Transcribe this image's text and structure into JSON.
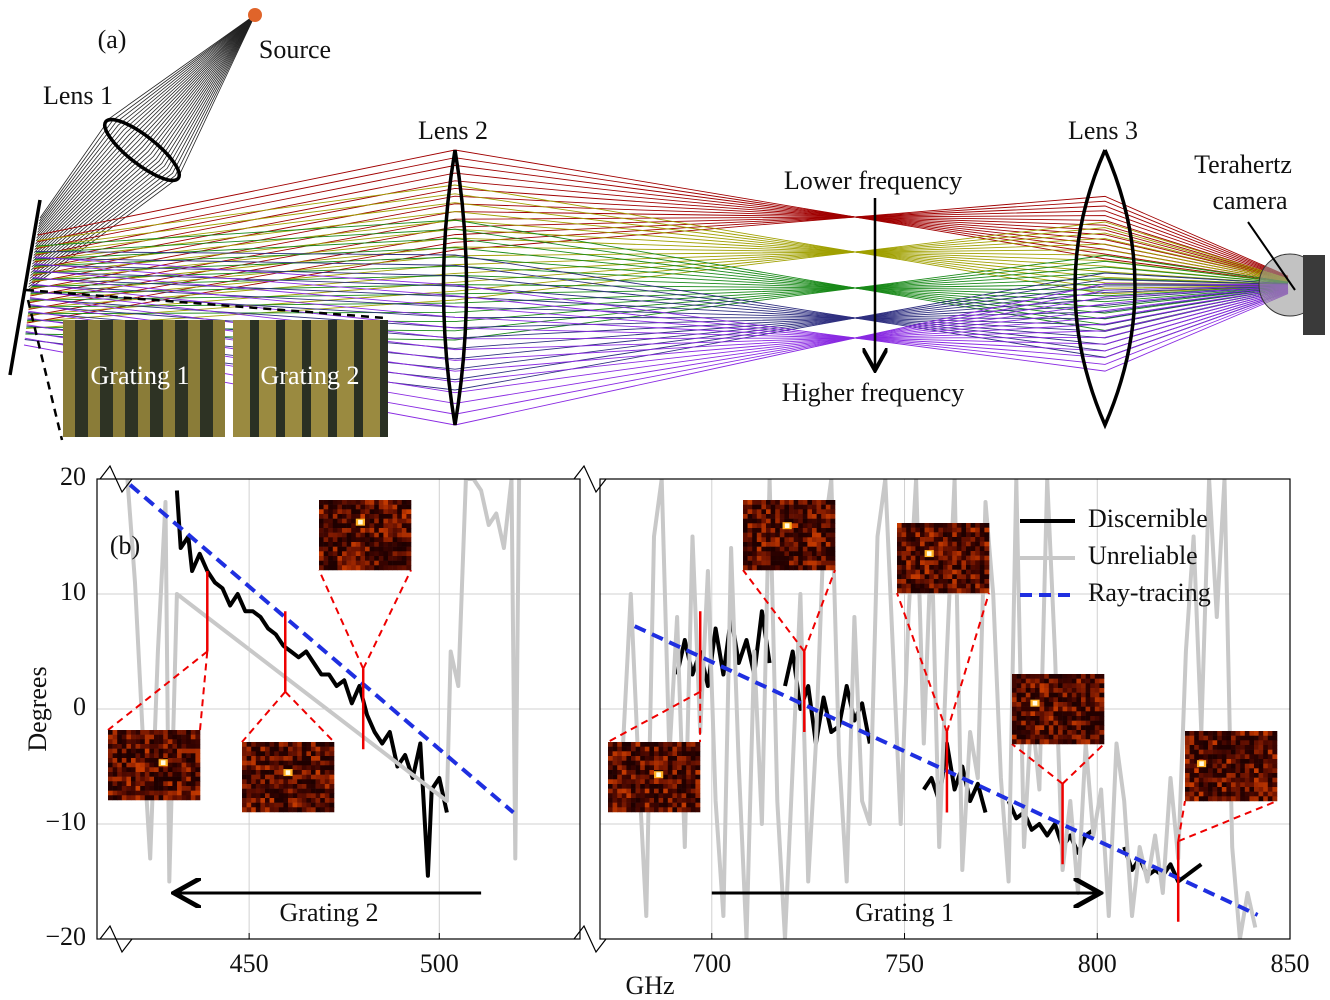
{
  "diagram": {
    "panel_label": "(a)",
    "source": "Source",
    "lenses": [
      "Lens 1",
      "Lens 2",
      "Lens 3"
    ],
    "camera": [
      "Terahertz",
      "camera"
    ],
    "lower_frequency": "Lower frequency",
    "higher_frequency": "Higher frequency",
    "gratings": [
      "Grating 1",
      "Grating 2"
    ]
  },
  "chart_data": {
    "type": "line",
    "panel_label": "(b)",
    "ylabel": "Degrees",
    "xlabel": "GHz",
    "panels": [
      {
        "xlim": [
          410,
          537
        ],
        "xticks": [
          450,
          500
        ]
      },
      {
        "xlim": [
          671,
          850
        ],
        "xticks": [
          700,
          750,
          800,
          850
        ]
      }
    ],
    "ylim": [
      -20,
      20
    ],
    "yticks": [
      {
        "value": -20,
        "label": "−20"
      },
      {
        "value": -10,
        "label": "−10"
      },
      0,
      10,
      20
    ],
    "grid": true,
    "legend": "upper right",
    "series": [
      {
        "name": "Discernible",
        "color": "#000000",
        "x": [
          431,
          432,
          434,
          435,
          437,
          439,
          441,
          443,
          445,
          447,
          449,
          451,
          453,
          455,
          457,
          459,
          461,
          463,
          465,
          467,
          469,
          471,
          473,
          475,
          477,
          479,
          481,
          483,
          485,
          487,
          489,
          491,
          493,
          495,
          497,
          498,
          500,
          502,
          691,
          693,
          695,
          697,
          699,
          701,
          703,
          705,
          707,
          709,
          711,
          713,
          715,
          717,
          719,
          721,
          723,
          725,
          727,
          729,
          731,
          733,
          735,
          737,
          739,
          741,
          750,
          755,
          757,
          759,
          761,
          763,
          765,
          767,
          769,
          771,
          774,
          777,
          779,
          781,
          783,
          785,
          787,
          789,
          791,
          793,
          795,
          797,
          799,
          803,
          807,
          809,
          811,
          813,
          815,
          817,
          819,
          821,
          823,
          825,
          827
        ],
        "values": [
          19,
          14,
          15,
          12,
          13.5,
          12,
          11,
          10.5,
          9,
          10,
          8.5,
          8.5,
          8,
          7,
          6.5,
          5.5,
          5,
          4.5,
          5,
          4,
          3,
          3,
          2,
          2.5,
          0.5,
          2,
          -0.5,
          -2,
          -3,
          -2,
          -5,
          -4,
          -6,
          -3,
          -14.5,
          -7,
          -6,
          -9,
          3,
          6,
          3,
          5,
          2,
          7,
          3,
          8,
          4,
          6,
          3,
          8.5,
          4,
          null,
          2,
          5,
          0,
          2,
          -3,
          1,
          -2,
          -1.5,
          2,
          -1,
          0.5,
          -3,
          null,
          -7,
          -6,
          -8,
          -3,
          -7,
          -5,
          -8,
          -6.5,
          -9,
          null,
          -8,
          -9.5,
          -9,
          -10.5,
          -10,
          -11,
          -10,
          -12,
          -11,
          -12.5,
          -11,
          -10.5,
          null,
          -12,
          -14,
          -13,
          -14.5,
          -14,
          -14.5,
          -13.5,
          -15,
          -14.5,
          -14,
          -13.5
        ]
      },
      {
        "name": "Unreliable",
        "color": "#c8c8c8",
        "x": [
          418,
          420,
          422,
          424,
          426,
          428,
          429,
          431,
          502,
          503,
          505,
          507,
          509,
          511,
          513,
          515,
          517,
          519,
          520,
          521,
          677,
          679,
          681,
          683,
          685,
          687,
          689,
          691,
          693,
          695,
          697,
          699,
          701,
          703,
          705,
          707,
          709,
          711,
          713,
          715,
          717,
          719,
          721,
          723,
          725,
          727,
          729,
          731,
          733,
          735,
          737,
          739,
          741,
          743,
          745,
          747,
          749,
          751,
          753,
          755,
          757,
          759,
          761,
          763,
          765,
          767,
          769,
          771,
          773,
          775,
          777,
          779,
          781,
          783,
          785,
          787,
          789,
          791,
          793,
          795,
          797,
          799,
          801,
          803,
          805,
          807,
          809,
          811,
          813,
          815,
          817,
          819,
          821,
          823,
          825,
          827,
          829,
          831,
          833,
          835,
          837,
          839,
          841
        ],
        "values": [
          20,
          11,
          -2,
          -13,
          5,
          18,
          -15,
          10,
          -8,
          5,
          2,
          20,
          20,
          19,
          16,
          17,
          14,
          20,
          -13,
          20,
          -3,
          10,
          -5,
          -18,
          15,
          20,
          -4,
          8,
          -12,
          15,
          -2,
          12,
          -8,
          -18,
          14,
          -5,
          -20,
          5,
          -10,
          20,
          -8,
          -20,
          -5,
          10,
          -15,
          -3,
          15,
          20,
          -4,
          -15,
          8,
          -8,
          -10,
          15,
          20,
          5,
          -10,
          8,
          20,
          -3,
          15,
          -12,
          5,
          20,
          -14,
          -2,
          -6,
          18,
          10,
          -6,
          -15,
          20,
          -12,
          0,
          -7,
          20,
          5,
          -14,
          -8,
          -16,
          -3,
          -11,
          -7,
          -18,
          -3,
          -8,
          -18,
          -12,
          -15,
          -11,
          -16,
          -6,
          -13,
          5,
          15,
          -2,
          20,
          8,
          20,
          -12,
          -20,
          -16,
          -19
        ]
      },
      {
        "name": "Ray-tracing",
        "color": "#1f2fe0",
        "dashed": true,
        "x": [
          418.7,
          519.5,
          680,
          841.6
        ],
        "values": [
          19.5,
          -9,
          7.2,
          -17.9
        ]
      }
    ],
    "markers": [
      {
        "x": 439,
        "y": 8.5
      },
      {
        "x": 459.5,
        "y": 5
      },
      {
        "x": 480,
        "y": 0
      },
      {
        "x": 697,
        "y": 5
      },
      {
        "x": 724,
        "y": 1.5
      },
      {
        "x": 761,
        "y": -5.5
      },
      {
        "x": 791,
        "y": -10
      },
      {
        "x": 821,
        "y": -15
      }
    ],
    "annotations": [
      {
        "text": "Grating 2",
        "x": [
          511,
          431
        ],
        "y": -16
      },
      {
        "text": "Grating 1",
        "x": [
          700,
          800
        ],
        "y": -16
      }
    ]
  }
}
